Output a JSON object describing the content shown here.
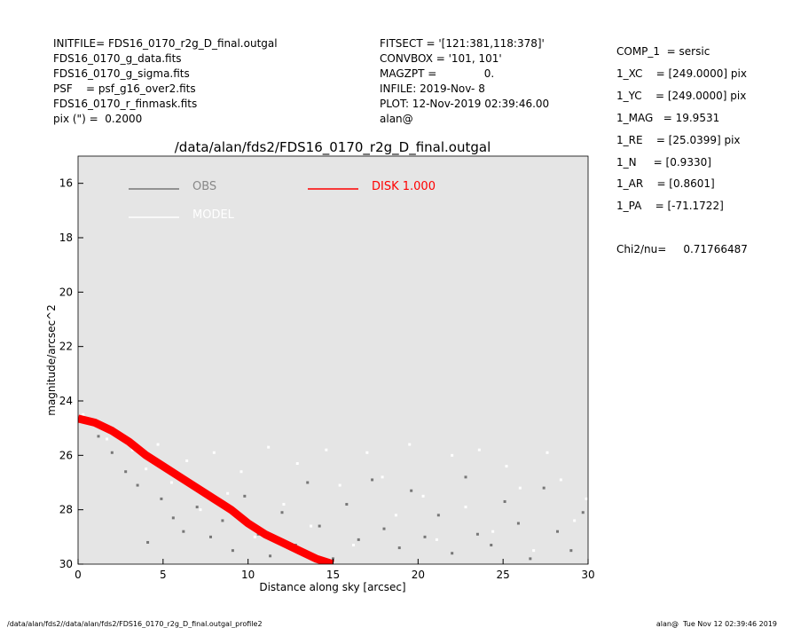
{
  "header": {
    "left": [
      "INITFILE= FDS16_0170_r2g_D_final.outgal",
      "FDS16_0170_g_data.fits",
      "FDS16_0170_g_sigma.fits",
      "PSF    = psf_g16_over2.fits",
      "FDS16_0170_r_finmask.fits",
      "pix (\") =  0.2000"
    ],
    "middle": [
      "FITSECT = '[121:381,118:378]'",
      "CONVBOX = '101, 101'",
      "MAGZPT =              0.",
      "INFILE: 2019-Nov- 8",
      "PLOT: 12-Nov-2019 02:39:46.00",
      "alan@"
    ],
    "right": [
      "COMP_1  = sersic",
      "1_XC    = [249.0000] pix",
      "1_YC    = [249.0000] pix",
      "1_MAG   = 19.9531",
      "1_RE    = [25.0399] pix",
      "1_N     = [0.9330]",
      "1_AR    = [0.8601]",
      "1_PA    = [-71.1722]"
    ],
    "chi2": "Chi2/nu=     0.71766487"
  },
  "footer": {
    "left": "/data/alan/fds2//data/alan/fds2/FDS16_0170_r2g_D_final.outgal_profile2",
    "right": "alan@  Tue Nov 12 02:39:46 2019"
  },
  "chart_data": {
    "type": "scatter",
    "title": "/data/alan/fds2/FDS16_0170_r2g_D_final.outgal",
    "x_label": "Distance along sky [arcsec]",
    "y_label": "magnitude/arcsec^2",
    "xlim": [
      0,
      30
    ],
    "ylim": [
      30,
      15
    ],
    "xticks": [
      0,
      5,
      10,
      15,
      20,
      25,
      30
    ],
    "yticks": [
      16,
      18,
      20,
      22,
      24,
      26,
      28,
      30
    ],
    "background": "#e5e5e5",
    "series": [
      {
        "name": "OBS",
        "color": "#777777",
        "style": "points",
        "x": [
          0.5,
          1.2,
          2.0,
          2.8,
          3.5,
          4.1,
          4.9,
          5.6,
          6.2,
          7.0,
          7.8,
          8.5,
          9.1,
          9.8,
          10.6,
          11.3,
          12.0,
          12.8,
          13.5,
          14.2,
          15.0,
          15.8,
          16.5,
          17.3,
          18.0,
          18.9,
          19.6,
          20.4,
          21.2,
          22.0,
          22.8,
          23.5,
          24.3,
          25.1,
          25.9,
          26.6,
          27.4,
          28.2,
          29.0,
          29.7
        ],
        "values": [
          24.8,
          25.3,
          25.9,
          26.6,
          27.1,
          29.2,
          27.6,
          28.3,
          28.8,
          27.9,
          29.0,
          28.4,
          29.5,
          27.5,
          28.9,
          29.7,
          28.1,
          29.3,
          27.0,
          28.6,
          29.8,
          27.8,
          29.1,
          26.9,
          28.7,
          29.4,
          27.3,
          29.0,
          28.2,
          29.6,
          26.8,
          28.9,
          29.3,
          27.7,
          28.5,
          29.8,
          27.2,
          28.8,
          29.5,
          28.1
        ]
      },
      {
        "name": "MODEL",
        "color": "#ffffff",
        "style": "points",
        "x": [
          0.3,
          1.0,
          1.7,
          2.5,
          3.2,
          4.0,
          4.7,
          5.5,
          6.4,
          7.2,
          8.0,
          8.8,
          9.6,
          10.4,
          11.2,
          12.1,
          12.9,
          13.7,
          14.6,
          15.4,
          16.2,
          17.0,
          17.9,
          18.7,
          19.5,
          20.3,
          21.1,
          22.0,
          22.8,
          23.6,
          24.4,
          25.2,
          26.0,
          26.8,
          27.6,
          28.4,
          29.2,
          29.9
        ],
        "values": [
          24.5,
          24.7,
          25.4,
          25.2,
          25.8,
          26.5,
          25.6,
          27.0,
          26.2,
          28.0,
          25.9,
          27.4,
          26.6,
          29.0,
          25.7,
          27.8,
          26.3,
          28.6,
          25.8,
          27.1,
          29.3,
          25.9,
          26.8,
          28.2,
          25.6,
          27.5,
          29.1,
          26.0,
          27.9,
          25.8,
          28.8,
          26.4,
          27.2,
          29.5,
          25.9,
          26.9,
          28.4,
          27.6
        ]
      },
      {
        "name": "DISK  1.000",
        "color": "#ff0000",
        "style": "band",
        "x": [
          0,
          1,
          2,
          3,
          4,
          5,
          6,
          7,
          8,
          9,
          10,
          11,
          12,
          13,
          14,
          15
        ],
        "values": [
          24.65,
          24.8,
          25.1,
          25.5,
          26.0,
          26.4,
          26.8,
          27.2,
          27.6,
          28.0,
          28.5,
          28.9,
          29.2,
          29.5,
          29.8,
          30.0
        ]
      }
    ]
  }
}
